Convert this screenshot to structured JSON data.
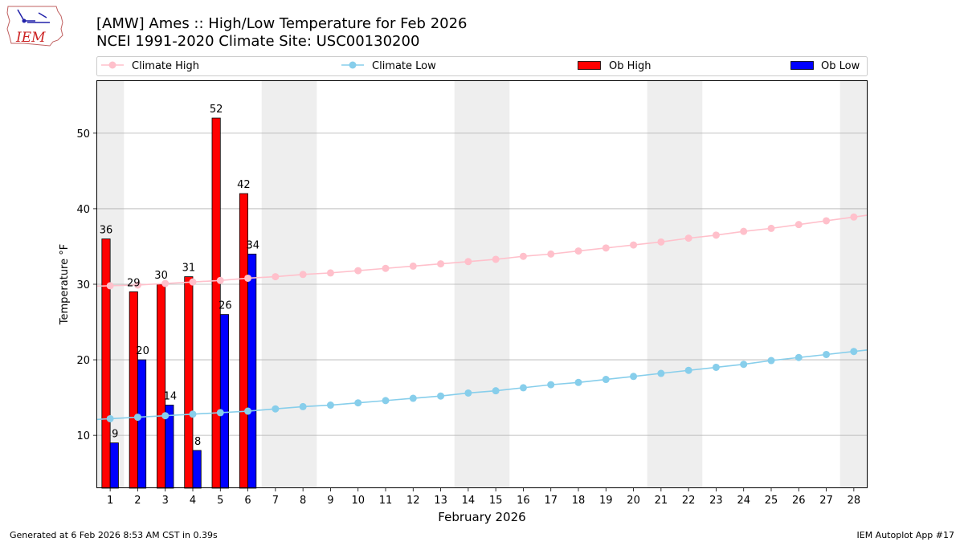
{
  "header": {
    "title_line1": "[AMW] Ames :: High/Low Temperature for Feb 2026",
    "title_line2": "NCEI 1991-2020 Climate Site: USC00130200",
    "logo_text": "IEM"
  },
  "footer": {
    "generated": "Generated at 6 Feb 2026 8:53 AM CST in 0.39s",
    "app": "IEM Autoplot App #17"
  },
  "chart_data": {
    "type": "bar",
    "xlabel": "February 2026",
    "ylabel": "Temperature °F",
    "xlim": [
      0.5,
      28.5
    ],
    "ylim": [
      3,
      57
    ],
    "x_ticks": [
      1,
      2,
      3,
      4,
      5,
      6,
      7,
      8,
      9,
      10,
      11,
      12,
      13,
      14,
      15,
      16,
      17,
      18,
      19,
      20,
      21,
      22,
      23,
      24,
      25,
      26,
      27,
      28
    ],
    "y_ticks": [
      10,
      20,
      30,
      40,
      50
    ],
    "grid": "horizontal",
    "weekend_shading": [
      [
        0.5,
        1.5
      ],
      [
        6.5,
        8.5
      ],
      [
        13.5,
        15.5
      ],
      [
        20.5,
        22.5
      ],
      [
        27.5,
        28.5
      ]
    ],
    "legend_position": "top",
    "colors": {
      "ob_high": "#ff0000",
      "ob_low": "#0000ff",
      "climate_high": "#ffc0cb",
      "climate_low": "#87ceeb",
      "weekend": "#eeeeee",
      "grid": "#b0b0b0"
    },
    "legend": [
      "Climate High",
      "Climate Low",
      "Ob High",
      "Ob Low"
    ],
    "ob_days": [
      1,
      2,
      3,
      4,
      5,
      6
    ],
    "ob_high": [
      36,
      29,
      30,
      31,
      52,
      42
    ],
    "ob_low": [
      9,
      20,
      14,
      8,
      26,
      34
    ],
    "climate_high": [
      29.8,
      29.9,
      30.1,
      30.3,
      30.5,
      30.8,
      31.0,
      31.3,
      31.5,
      31.8,
      32.1,
      32.4,
      32.7,
      33.0,
      33.3,
      33.7,
      34.0,
      34.4,
      34.8,
      35.2,
      35.6,
      36.1,
      36.5,
      37.0,
      37.4,
      37.9,
      38.4,
      38.9
    ],
    "climate_low": [
      12.2,
      12.4,
      12.6,
      12.8,
      13.0,
      13.2,
      13.5,
      13.8,
      14.0,
      14.3,
      14.6,
      14.9,
      15.2,
      15.6,
      15.9,
      16.3,
      16.7,
      17.0,
      17.4,
      17.8,
      18.2,
      18.6,
      19.0,
      19.4,
      19.9,
      20.3,
      20.7,
      21.1
    ]
  }
}
